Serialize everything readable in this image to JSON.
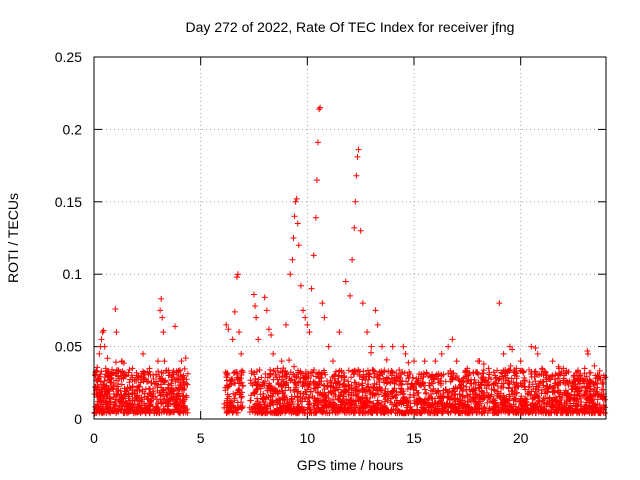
{
  "chart_data": {
    "type": "scatter",
    "title": "Day 272 of 2022, Rate Of TEC Index for receiver jfng",
    "xlabel": "GPS time / hours",
    "ylabel": "ROTI / TECUs",
    "xlim": [
      0,
      24
    ],
    "ylim": [
      0,
      0.25
    ],
    "xticks": [
      0,
      5,
      10,
      15,
      20
    ],
    "xtick_labels": [
      "0",
      "5",
      "10",
      "15",
      "20"
    ],
    "yticks": [
      0,
      0.05,
      0.1,
      0.15,
      0.2,
      0.25
    ],
    "ytick_labels": [
      "0",
      "0.05",
      "0.1",
      "0.15",
      "0.2",
      "0.25"
    ],
    "grid": true,
    "marker": "+",
    "color": "#ff0000",
    "gaps_hours": [
      [
        4.4,
        6.1
      ],
      [
        7.0,
        7.3
      ]
    ],
    "series": [
      {
        "name": "ROTI",
        "x": [
          0.1,
          0.25,
          0.3,
          0.35,
          0.4,
          0.45,
          0.5,
          0.55,
          0.7,
          0.8,
          1.0,
          1.05,
          1.3,
          1.5,
          1.8,
          2.0,
          2.3,
          2.6,
          3.0,
          3.1,
          3.15,
          3.2,
          3.25,
          3.3,
          3.5,
          3.8,
          4.1,
          4.2,
          4.3,
          6.2,
          6.3,
          6.5,
          6.6,
          6.7,
          6.75,
          6.8,
          6.9,
          7.5,
          7.55,
          7.6,
          7.7,
          8.0,
          8.1,
          8.2,
          8.3,
          8.4,
          8.6,
          8.8,
          9.0,
          9.2,
          9.3,
          9.35,
          9.4,
          9.45,
          9.5,
          9.55,
          9.6,
          9.7,
          9.8,
          9.9,
          10.0,
          10.1,
          10.2,
          10.3,
          10.4,
          10.45,
          10.5,
          10.55,
          10.6,
          10.7,
          10.8,
          11.0,
          11.2,
          11.5,
          11.8,
          12.0,
          12.1,
          12.2,
          12.25,
          12.3,
          12.35,
          12.4,
          12.5,
          12.6,
          12.8,
          13.0,
          13.2,
          13.3,
          13.5,
          14.0,
          14.5,
          14.6,
          15.0,
          15.5,
          16.0,
          16.3,
          16.6,
          16.8,
          17.0,
          17.5,
          18.0,
          18.5,
          18.8,
          19.0,
          19.2,
          19.5,
          19.6,
          19.8,
          20.0,
          20.5,
          20.7,
          20.8,
          21.0,
          21.5,
          21.8,
          22.0,
          22.5,
          23.0,
          23.5,
          23.9
        ],
        "y": [
          0.02,
          0.045,
          0.05,
          0.055,
          0.06,
          0.061,
          0.05,
          0.035,
          0.03,
          0.025,
          0.076,
          0.06,
          0.04,
          0.03,
          0.035,
          0.03,
          0.045,
          0.035,
          0.04,
          0.075,
          0.083,
          0.07,
          0.06,
          0.04,
          0.03,
          0.064,
          0.04,
          0.03,
          0.042,
          0.065,
          0.062,
          0.055,
          0.074,
          0.098,
          0.1,
          0.06,
          0.045,
          0.086,
          0.078,
          0.07,
          0.055,
          0.084,
          0.075,
          0.062,
          0.058,
          0.045,
          0.035,
          0.04,
          0.065,
          0.1,
          0.11,
          0.125,
          0.14,
          0.15,
          0.152,
          0.135,
          0.12,
          0.092,
          0.075,
          0.07,
          0.065,
          0.06,
          0.09,
          0.113,
          0.139,
          0.165,
          0.191,
          0.214,
          0.215,
          0.08,
          0.07,
          0.05,
          0.04,
          0.06,
          0.095,
          0.085,
          0.11,
          0.132,
          0.15,
          0.168,
          0.181,
          0.186,
          0.13,
          0.08,
          0.06,
          0.05,
          0.075,
          0.065,
          0.05,
          0.05,
          0.05,
          0.045,
          0.04,
          0.04,
          0.04,
          0.045,
          0.05,
          0.055,
          0.04,
          0.035,
          0.04,
          0.035,
          0.03,
          0.08,
          0.045,
          0.05,
          0.048,
          0.035,
          0.04,
          0.05,
          0.049,
          0.045,
          0.035,
          0.04,
          0.035,
          0.035,
          0.03,
          0.035,
          0.03,
          0.03
        ]
      }
    ]
  }
}
